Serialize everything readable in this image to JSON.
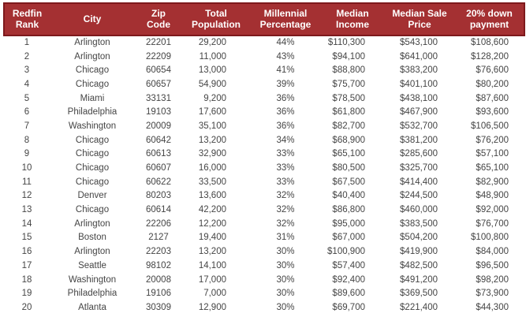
{
  "chart_data": {
    "type": "table",
    "columns": [
      "Redfin\nRank",
      "City",
      "Zip\nCode",
      "Total\nPopulation",
      "Millennial\nPercentage",
      "Median\nIncome",
      "Median Sale\nPrice",
      "20% down\npayment"
    ],
    "rows": [
      [
        "1",
        "Arlington",
        "22201",
        "29,200",
        "44%",
        "$110,300",
        "$543,100",
        "$108,600"
      ],
      [
        "2",
        "Arlington",
        "22209",
        "11,000",
        "43%",
        "$94,100",
        "$641,000",
        "$128,200"
      ],
      [
        "3",
        "Chicago",
        "60654",
        "13,000",
        "41%",
        "$88,800",
        "$383,200",
        "$76,600"
      ],
      [
        "4",
        "Chicago",
        "60657",
        "54,900",
        "39%",
        "$75,700",
        "$401,100",
        "$80,200"
      ],
      [
        "5",
        "Miami",
        "33131",
        "9,200",
        "36%",
        "$78,500",
        "$438,100",
        "$87,600"
      ],
      [
        "6",
        "Philadelphia",
        "19103",
        "17,600",
        "36%",
        "$61,800",
        "$467,900",
        "$93,600"
      ],
      [
        "7",
        "Washington",
        "20009",
        "35,100",
        "36%",
        "$82,700",
        "$532,700",
        "$106,500"
      ],
      [
        "8",
        "Chicago",
        "60642",
        "13,200",
        "34%",
        "$68,900",
        "$381,200",
        "$76,200"
      ],
      [
        "9",
        "Chicago",
        "60613",
        "32,900",
        "33%",
        "$65,100",
        "$285,600",
        "$57,100"
      ],
      [
        "10",
        "Chicago",
        "60607",
        "16,000",
        "33%",
        "$80,500",
        "$325,700",
        "$65,100"
      ],
      [
        "11",
        "Chicago",
        "60622",
        "33,500",
        "33%",
        "$67,500",
        "$414,400",
        "$82,900"
      ],
      [
        "12",
        "Denver",
        "80203",
        "13,600",
        "32%",
        "$40,400",
        "$244,500",
        "$48,900"
      ],
      [
        "13",
        "Chicago",
        "60614",
        "42,200",
        "32%",
        "$86,800",
        "$460,000",
        "$92,000"
      ],
      [
        "14",
        "Arlington",
        "22206",
        "12,200",
        "32%",
        "$95,000",
        "$383,500",
        "$76,700"
      ],
      [
        "15",
        "Boston",
        "2127",
        "19,400",
        "31%",
        "$67,000",
        "$504,200",
        "$100,800"
      ],
      [
        "16",
        "Arlington",
        "22203",
        "13,200",
        "30%",
        "$100,900",
        "$419,900",
        "$84,000"
      ],
      [
        "17",
        "Seattle",
        "98102",
        "14,100",
        "30%",
        "$57,400",
        "$482,500",
        "$96,500"
      ],
      [
        "18",
        "Washington",
        "20008",
        "17,000",
        "30%",
        "$92,400",
        "$491,200",
        "$98,200"
      ],
      [
        "19",
        "Philadelphia",
        "19106",
        "7,000",
        "30%",
        "$89,600",
        "$369,500",
        "$73,900"
      ],
      [
        "20",
        "Atlanta",
        "30309",
        "12,900",
        "30%",
        "$69,700",
        "$221,400",
        "$44,300"
      ]
    ]
  },
  "colors": {
    "header_bg": "#a43032",
    "header_border": "#7d191c",
    "header_text": "#ffffff",
    "body_text": "#454545",
    "background": "#ffffff"
  }
}
